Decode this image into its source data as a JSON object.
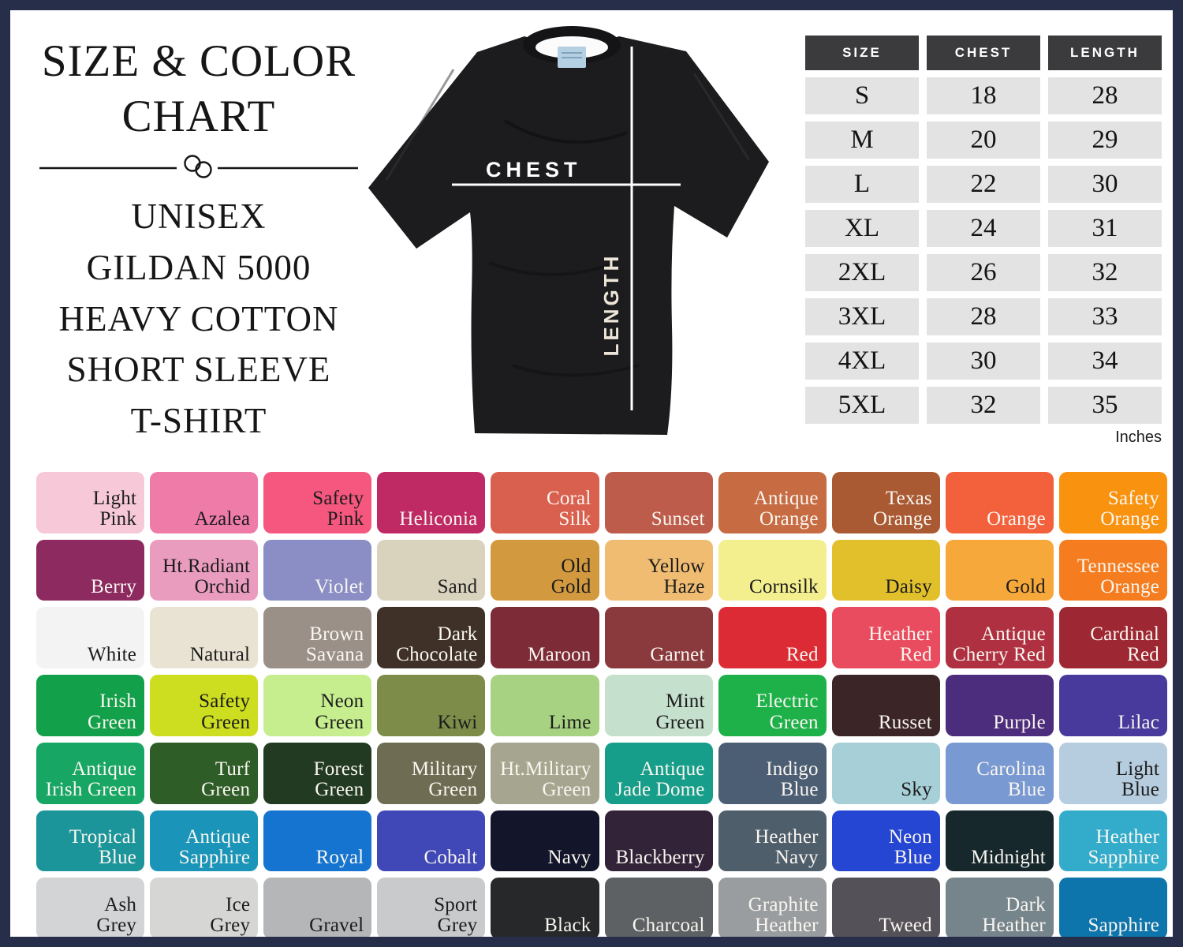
{
  "title": {
    "line1": "SIZE & COLOR",
    "line2": "CHART"
  },
  "subtitle": {
    "lines": [
      "UNISEX",
      "GILDAN 5000",
      "HEAVY COTTON",
      "SHORT SLEEVE",
      "T-SHIRT"
    ]
  },
  "shirt": {
    "chest_label": "CHEST",
    "length_label": "LENGTH"
  },
  "size_table": {
    "headers": [
      "SIZE",
      "CHEST",
      "LENGTH"
    ],
    "rows": [
      [
        "S",
        "18",
        "28"
      ],
      [
        "M",
        "20",
        "29"
      ],
      [
        "L",
        "22",
        "30"
      ],
      [
        "XL",
        "24",
        "31"
      ],
      [
        "2XL",
        "26",
        "32"
      ],
      [
        "3XL",
        "28",
        "33"
      ],
      [
        "4XL",
        "30",
        "34"
      ],
      [
        "5XL",
        "32",
        "35"
      ]
    ],
    "unit_note": "Inches"
  },
  "colors": {
    "frame_border": "#272e49",
    "table_header_bg": "#3b3b3d",
    "table_row_bg": "#e3e3e3",
    "shirt_body": "#1c1c1e",
    "measure_line": "#ffffff"
  },
  "swatches": [
    {
      "name": "Light\nPink",
      "bg": "#f6c8d8",
      "text": "#1c1c1c"
    },
    {
      "name": "Azalea",
      "bg": "#ee7ba8",
      "text": "#1c1c1c"
    },
    {
      "name": "Safety\nPink",
      "bg": "#f5577f",
      "text": "#1c1c1c"
    },
    {
      "name": "Heliconia",
      "bg": "#bf2a64",
      "text": "#f9f6f0"
    },
    {
      "name": "Coral\nSilk",
      "bg": "#d9604f",
      "text": "#f9f6f0"
    },
    {
      "name": "Sunset",
      "bg": "#bd5c4a",
      "text": "#f9f6f0"
    },
    {
      "name": "Antique\nOrange",
      "bg": "#c66b42",
      "text": "#f9f6f0"
    },
    {
      "name": "Texas\nOrange",
      "bg": "#aa5a33",
      "text": "#f9f6f0"
    },
    {
      "name": "Orange",
      "bg": "#f2613c",
      "text": "#f9f6f0"
    },
    {
      "name": "Safety\nOrange",
      "bg": "#f9930f",
      "text": "#f9f6f0"
    },
    {
      "name": "Berry",
      "bg": "#8d2a60",
      "text": "#f9f6f0"
    },
    {
      "name": "Ht.Radiant\nOrchid",
      "bg": "#ea9cbe",
      "text": "#1c1c1c"
    },
    {
      "name": "Violet",
      "bg": "#8a8ec5",
      "text": "#f9f6f0"
    },
    {
      "name": "Sand",
      "bg": "#d9d2bd",
      "text": "#1c1c1c"
    },
    {
      "name": "Old\nGold",
      "bg": "#d3993f",
      "text": "#1c1c1c"
    },
    {
      "name": "Yellow\nHaze",
      "bg": "#f0bc72",
      "text": "#1c1c1c"
    },
    {
      "name": "Cornsilk",
      "bg": "#f4ef8e",
      "text": "#1c1c1c"
    },
    {
      "name": "Daisy",
      "bg": "#e2c02c",
      "text": "#1c1c1c"
    },
    {
      "name": "Gold",
      "bg": "#f7a83a",
      "text": "#1c1c1c"
    },
    {
      "name": "Tennessee\nOrange",
      "bg": "#f57d1f",
      "text": "#f9f6f0"
    },
    {
      "name": "White",
      "bg": "#f3f3f3",
      "text": "#1c1c1c"
    },
    {
      "name": "Natural",
      "bg": "#e9e3d3",
      "text": "#1c1c1c"
    },
    {
      "name": "Brown\nSavana",
      "bg": "#9b9088",
      "text": "#f9f6f0",
      "tex": true
    },
    {
      "name": "Dark\nChocolate",
      "bg": "#3f3127",
      "text": "#f9f6f0"
    },
    {
      "name": "Maroon",
      "bg": "#7c2b37",
      "text": "#f9f6f0"
    },
    {
      "name": "Garnet",
      "bg": "#8a393d",
      "text": "#f9f6f0"
    },
    {
      "name": "Red",
      "bg": "#dc2b34",
      "text": "#f9f6f0"
    },
    {
      "name": "Heather\nRed",
      "bg": "#ea4c5f",
      "text": "#f9f6f0"
    },
    {
      "name": "Antique\nCherry Red",
      "bg": "#af3141",
      "text": "#f9f6f0"
    },
    {
      "name": "Cardinal\nRed",
      "bg": "#9d2732",
      "text": "#f9f6f0"
    },
    {
      "name": "Irish\nGreen",
      "bg": "#13a04a",
      "text": "#f9f6f0"
    },
    {
      "name": "Safety\nGreen",
      "bg": "#cdde20",
      "text": "#1c1c1c"
    },
    {
      "name": "Neon\nGreen",
      "bg": "#c6ee8f",
      "text": "#1c1c1c"
    },
    {
      "name": "Kiwi",
      "bg": "#7d8c49",
      "text": "#1c1c1c"
    },
    {
      "name": "Lime",
      "bg": "#a7d282",
      "text": "#1c1c1c"
    },
    {
      "name": "Mint\nGreen",
      "bg": "#c5e0cc",
      "text": "#1c1c1c"
    },
    {
      "name": "Electric\nGreen",
      "bg": "#1eb14a",
      "text": "#f9f6f0"
    },
    {
      "name": "Russet",
      "bg": "#3b2527",
      "text": "#f9f6f0"
    },
    {
      "name": "Purple",
      "bg": "#4c2c7c",
      "text": "#f9f6f0"
    },
    {
      "name": "Lilac",
      "bg": "#473a9c",
      "text": "#f9f6f0"
    },
    {
      "name": "Antique\nIrish Green",
      "bg": "#18a664",
      "text": "#f9f6f0"
    },
    {
      "name": "Turf\nGreen",
      "bg": "#2f5d28",
      "text": "#f9f6f0"
    },
    {
      "name": "Forest\nGreen",
      "bg": "#213a21",
      "text": "#f9f6f0"
    },
    {
      "name": "Military\nGreen",
      "bg": "#6e6c52",
      "text": "#f9f6f0"
    },
    {
      "name": "Ht.Military\nGreen",
      "bg": "#a6a690",
      "text": "#f9f6f0",
      "tex": true
    },
    {
      "name": "Antique\nJade Dome",
      "bg": "#179e8a",
      "text": "#f9f6f0"
    },
    {
      "name": "Indigo\nBlue",
      "bg": "#4c5e74",
      "text": "#f9f6f0"
    },
    {
      "name": "Sky",
      "bg": "#a7cfd8",
      "text": "#1c1c1c"
    },
    {
      "name": "Carolina\nBlue",
      "bg": "#7999d2",
      "text": "#f9f6f0"
    },
    {
      "name": "Light\nBlue",
      "bg": "#b6ccdf",
      "text": "#1c1c1c"
    },
    {
      "name": "Tropical\nBlue",
      "bg": "#1c959a",
      "text": "#f9f6f0"
    },
    {
      "name": "Antique\nSapphire",
      "bg": "#1a95b9",
      "text": "#f9f6f0"
    },
    {
      "name": "Royal",
      "bg": "#1574d0",
      "text": "#f9f6f0"
    },
    {
      "name": "Cobalt",
      "bg": "#4048b7",
      "text": "#f9f6f0"
    },
    {
      "name": "Navy",
      "bg": "#13152a",
      "text": "#f9f6f0"
    },
    {
      "name": "Blackberry",
      "bg": "#332339",
      "text": "#f9f6f0"
    },
    {
      "name": "Heather\nNavy",
      "bg": "#4f5e6b",
      "text": "#f9f6f0",
      "tex": true
    },
    {
      "name": "Neon\nBlue",
      "bg": "#2545d3",
      "text": "#f9f6f0"
    },
    {
      "name": "Midnight",
      "bg": "#17282d",
      "text": "#f9f6f0"
    },
    {
      "name": "Heather\nSapphire",
      "bg": "#33accb",
      "text": "#f9f6f0"
    },
    {
      "name": "Ash\nGrey",
      "bg": "#d3d4d6",
      "text": "#1c1c1c",
      "tex": true
    },
    {
      "name": "Ice\nGrey",
      "bg": "#d6d7d5",
      "text": "#1c1c1c"
    },
    {
      "name": "Gravel",
      "bg": "#b4b6b8",
      "text": "#1c1c1c"
    },
    {
      "name": "Sport\nGrey",
      "bg": "#c8cacc",
      "text": "#1c1c1c",
      "tex": true
    },
    {
      "name": "Black",
      "bg": "#26282a",
      "text": "#f9f6f0"
    },
    {
      "name": "Charcoal",
      "bg": "#5d6163",
      "text": "#f9f6f0"
    },
    {
      "name": "Graphite\nHeather",
      "bg": "#9a9da0",
      "text": "#f9f6f0",
      "tex": true
    },
    {
      "name": "Tweed",
      "bg": "#555158",
      "text": "#f9f6f0",
      "tex": true
    },
    {
      "name": "Dark\nHeather",
      "bg": "#76848c",
      "text": "#f9f6f0",
      "tex": true
    },
    {
      "name": "Sapphire",
      "bg": "#0d75ac",
      "text": "#f9f6f0"
    }
  ]
}
